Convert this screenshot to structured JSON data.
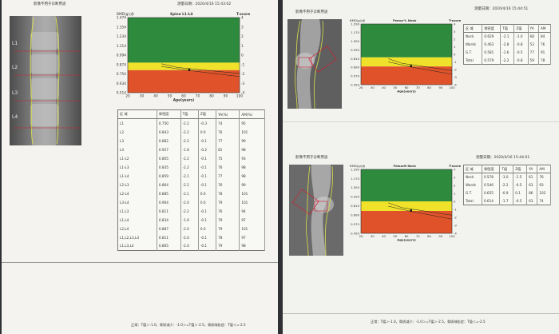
{
  "left": {
    "header_title": "影像不用于诊断用途",
    "date": "测量日期：2020/4/16 15:43:02",
    "scan_labels": [
      "L1",
      "L2",
      "L3",
      "L4"
    ],
    "chart": {
      "bmd_label": "BMD(g/㎠)",
      "site": "Spine L1-L4",
      "tscore_label": "T-score",
      "y_ticks": [
        "1.474",
        "1.354",
        "1.234",
        "1.114",
        "0.994",
        "0.874",
        "0.754",
        "0.634",
        "0.514"
      ],
      "t_ticks": [
        "4",
        "3",
        "2",
        "1",
        "0",
        "-1",
        "-2",
        "-3",
        "-4"
      ],
      "x_ticks": [
        "20",
        "30",
        "40",
        "50",
        "60",
        "70",
        "80",
        "90",
        "100"
      ],
      "x_label": "Age(years)"
    },
    "table": {
      "headers": [
        "区 域",
        "骨密度",
        "T值",
        "Z值",
        "YA(%)",
        "AM(%)"
      ],
      "rows": [
        [
          "L1",
          "0.750",
          "-2.2",
          "-0.3",
          "74",
          "95"
        ],
        [
          "L2",
          "0.843",
          "-2.2",
          "0.0",
          "76",
          "101"
        ],
        [
          "L3",
          "0.882",
          "-2.2",
          "-0.1",
          "77",
          "99"
        ],
        [
          "L4",
          "0.927",
          "-1.8",
          "-0.2",
          "81",
          "98"
        ],
        [
          "L1-L2",
          "0.805",
          "-2.2",
          "-0.1",
          "75",
          "93"
        ],
        [
          "L1-L3",
          "0.835",
          "-2.2",
          "-0.1",
          "76",
          "98"
        ],
        [
          "L1-L4",
          "0.859",
          "-2.1",
          "-0.1",
          "77",
          "98"
        ],
        [
          "L2-L3",
          "0.864",
          "-2.2",
          "-0.1",
          "76",
          "99"
        ],
        [
          "L2-L4",
          "0.885",
          "-2.1",
          "0.0",
          "78",
          "101"
        ],
        [
          "L3-L4",
          "0.904",
          "-2.0",
          "0.0",
          "79",
          "101"
        ],
        [
          "L1,L3",
          "0.811",
          "-2.2",
          "-0.1",
          "76",
          "94"
        ],
        [
          "L1,L4",
          "0.834",
          "-1.9",
          "-0.1",
          "79",
          "97"
        ],
        [
          "L2,L4",
          "0.887",
          "-2.0",
          "0.0",
          "79",
          "101"
        ],
        [
          "L1,L2,L3,L4",
          "0.811",
          "-2.0",
          "-0.1",
          "78",
          "97"
        ],
        [
          "L1,L3,L4",
          "0.865",
          "-2.0",
          "-0.1",
          "79",
          "98"
        ]
      ]
    },
    "footer": "正常：T值＞-1.0，骨质减少：-1.0＞=T值＞-2.5，骨质疏松症：T值＜=-2.5"
  },
  "right_top": {
    "header_title": "影像不用于诊断用途",
    "date": "测量日期：2020/4/16 15:44:51",
    "chart": {
      "bmd_label": "BMD(g/㎠)",
      "site": "Femur’L Neck",
      "tscore_label": "T-score",
      "y_ticks": [
        "1.290",
        "1.170",
        "1.050",
        "0.930",
        "0.810",
        "0.690",
        "0.570",
        "0.450"
      ],
      "t_ticks": [
        "4",
        "3",
        "2",
        "1",
        "0",
        "-1",
        "-2",
        "-3",
        "-4"
      ],
      "x_ticks": [
        "20",
        "30",
        "40",
        "50",
        "60",
        "70",
        "80",
        "90",
        "100"
      ],
      "x_label": "Age(years)"
    },
    "table": {
      "headers": [
        "区 域",
        "骨密度",
        "T值",
        "Z值",
        "YA",
        "AM"
      ],
      "rows": [
        [
          "Neck",
          "0.629",
          "-2.1",
          "-1.0",
          "68",
          "84"
        ],
        [
          "Wards",
          "0.463",
          "-2.8",
          "-0.8",
          "53",
          "76"
        ],
        [
          "G.T.",
          "0.581",
          "-1.6",
          "-0.5",
          "77",
          "91"
        ],
        [
          "Total",
          "0.579",
          "-2.2",
          "-0.8",
          "59",
          "78"
        ]
      ]
    }
  },
  "right_bottom": {
    "header_title": "影像不用于诊断用途",
    "date": "测量日期：2020/4/16 15:44:01",
    "chart": {
      "bmd_label": "BMD(g/㎠)",
      "site": "FemurR Neck",
      "tscore_label": "T-score",
      "y_ticks": [
        "1.290",
        "1.170",
        "1.050",
        "0.930",
        "0.810",
        "0.690",
        "0.570",
        "0.450"
      ],
      "t_ticks": [
        "4",
        "3",
        "2",
        "1",
        "0",
        "-1",
        "-2",
        "-3",
        "-4"
      ],
      "x_ticks": [
        "20",
        "30",
        "40",
        "50",
        "60",
        "70",
        "80",
        "90",
        "100"
      ],
      "x_label": "Age(years)"
    },
    "table": {
      "headers": [
        "区 域",
        "骨密度",
        "T值",
        "Z值",
        "YA",
        "AM"
      ],
      "rows": [
        [
          "Neck",
          "0.578",
          "-3.0",
          "-1.5",
          "61",
          "76"
        ],
        [
          "Wards",
          "0.546",
          "-2.2",
          "-0.5",
          "63",
          "93"
        ],
        [
          "G.T.",
          "0.655",
          "-0.9",
          "0.1",
          "86",
          "102"
        ],
        [
          "Total",
          "0.614",
          "-1.7",
          "-0.5",
          "63",
          "74"
        ]
      ]
    },
    "footer": "正常：T值＞-1.0，骨质减少：-1.0＞=T值＞-2.5，骨质疏松症：T值＜=-2.5"
  },
  "colors": {
    "green": "#2e8a3c",
    "yellow": "#f0e22a",
    "red": "#e0532a",
    "scan_bg": "#6a6a6a",
    "outline": "#d9e04a"
  }
}
